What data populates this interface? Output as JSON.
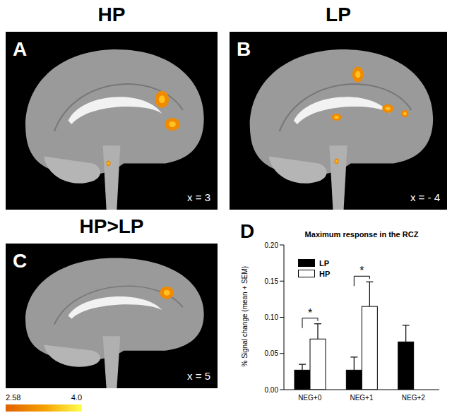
{
  "figure": {
    "panels": [
      {
        "letter": "A",
        "title": "HP",
        "slice": "x = 3"
      },
      {
        "letter": "B",
        "title": "LP",
        "slice": "x = - 4"
      },
      {
        "letter": "C",
        "title": "HP>LP",
        "slice": "x = 5"
      }
    ],
    "colorbar": {
      "range": [
        2.58,
        4
      ],
      "ticks": [
        2.58,
        {
          "value": 4,
          "label": "4.0"
        }
      ]
    }
  },
  "chart_data": {
    "type": "bar",
    "letter": "D",
    "title": "Maximum response in the RCZ",
    "y_label": "% Signal change (mean + SEM)",
    "categories": [
      "NEG+0",
      "NEG+1",
      "NEG+2"
    ],
    "series": [
      {
        "name": "LP",
        "color": "#000000",
        "values": [
          0.027,
          0.027,
          0.066
        ],
        "errors": [
          0.008,
          0.018,
          0.023
        ]
      },
      {
        "name": "HP",
        "color": "#ffffff",
        "values": [
          0.07,
          0.115,
          null
        ],
        "errors": [
          0.021,
          0.034,
          null
        ]
      }
    ],
    "ylim": [
      0,
      0.2
    ],
    "yticks": [
      {
        "value": 0,
        "label": "0.00"
      },
      {
        "value": 0.05,
        "label": "0.05"
      },
      {
        "value": 0.1,
        "label": "0.10"
      },
      {
        "value": 0.15,
        "label": "0.15"
      },
      {
        "value": 0.2,
        "label": "0.20"
      }
    ],
    "legend": "upper left",
    "annotations": [
      {
        "category": "NEG+0",
        "label": "*"
      },
      {
        "category": "NEG+1",
        "label": "*"
      }
    ]
  }
}
